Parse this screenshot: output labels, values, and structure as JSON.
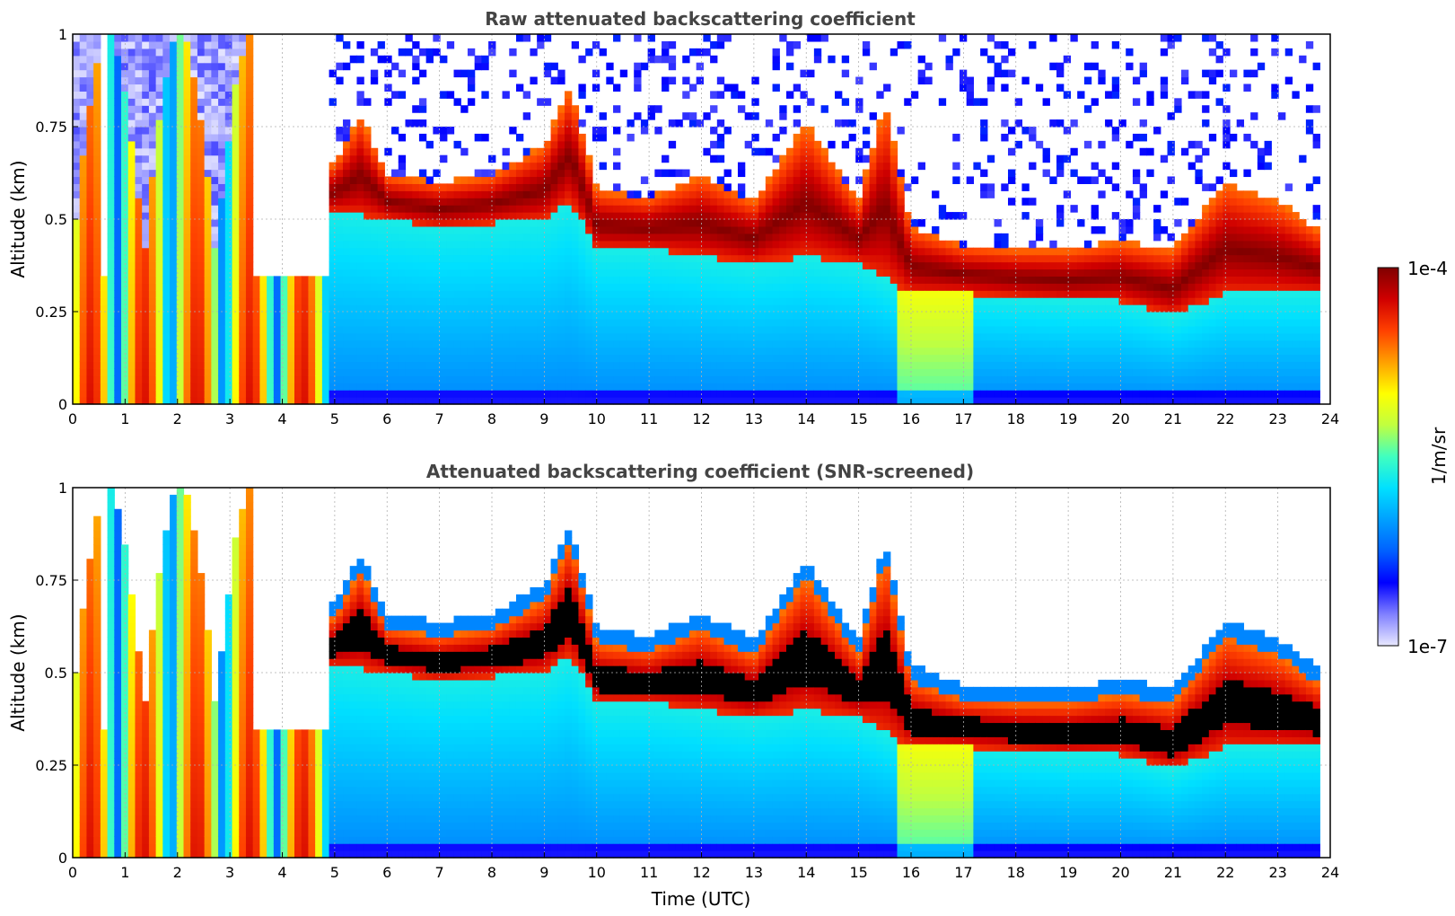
{
  "chart_data": [
    {
      "type": "heatmap",
      "title": "Raw attenuated backscattering coefficient",
      "xlabel": "",
      "ylabel": "Altitude (km)",
      "xlim": [
        0,
        24
      ],
      "ylim": [
        0,
        1
      ],
      "x_ticks": [
        0,
        1,
        2,
        3,
        4,
        5,
        6,
        7,
        8,
        9,
        10,
        11,
        12,
        13,
        14,
        15,
        16,
        17,
        18,
        19,
        20,
        21,
        22,
        23,
        24
      ],
      "y_ticks": [
        0,
        0.25,
        0.5,
        0.75,
        1
      ],
      "y_tick_labels": [
        "0",
        "0.25",
        "0.5",
        "0.75",
        "1"
      ],
      "grid": true,
      "screened": false,
      "data_end_hour": 23.8,
      "gap_hours": [
        [
          0.55,
          0.7
        ],
        [
          3.5,
          4.9
        ]
      ],
      "cloud_base_km": {
        "hours": [
          5,
          6,
          7,
          8,
          9,
          9.5,
          10,
          11,
          12,
          13,
          14,
          15,
          16,
          17,
          18,
          19,
          20,
          21,
          22,
          23,
          23.8
        ],
        "values": [
          0.52,
          0.5,
          0.48,
          0.49,
          0.5,
          0.55,
          0.42,
          0.42,
          0.4,
          0.38,
          0.4,
          0.38,
          0.3,
          0.3,
          0.29,
          0.28,
          0.28,
          0.24,
          0.3,
          0.3,
          0.3
        ]
      },
      "cloud_top_km": {
        "hours": [
          5,
          5.5,
          6,
          7,
          8,
          9,
          9.5,
          10,
          11,
          12,
          13,
          14,
          15,
          15.5,
          16,
          17,
          18,
          19,
          20,
          21,
          22,
          23,
          23.8
        ],
        "values": [
          0.65,
          0.78,
          0.62,
          0.6,
          0.62,
          0.7,
          0.86,
          0.58,
          0.56,
          0.62,
          0.55,
          0.76,
          0.55,
          0.82,
          0.48,
          0.43,
          0.42,
          0.42,
          0.44,
          0.42,
          0.6,
          0.55,
          0.47
        ]
      }
    },
    {
      "type": "heatmap",
      "title": "Attenuated backscattering coefficient (SNR-screened)",
      "xlabel": "Time (UTC)",
      "ylabel": "Altitude (km)",
      "xlim": [
        0,
        24
      ],
      "ylim": [
        0,
        1
      ],
      "x_ticks": [
        0,
        1,
        2,
        3,
        4,
        5,
        6,
        7,
        8,
        9,
        10,
        11,
        12,
        13,
        14,
        15,
        16,
        17,
        18,
        19,
        20,
        21,
        22,
        23,
        24
      ],
      "y_ticks": [
        0,
        0.25,
        0.5,
        0.75,
        1
      ],
      "y_tick_labels": [
        "0",
        "0.25",
        "0.5",
        "0.75",
        "1"
      ],
      "grid": true,
      "screened": true,
      "data_end_hour": 23.8
    }
  ],
  "colorbar": {
    "label": "1/m/sr",
    "max_label": "1e-4",
    "min_label": "1e-7",
    "scale": "log",
    "range": [
      1e-07,
      0.0001
    ],
    "colors": [
      "#e8e8ff",
      "#8080ff",
      "#0000ff",
      "#0060ff",
      "#00a0ff",
      "#00e0ff",
      "#40ffc0",
      "#c0ff40",
      "#ffff00",
      "#ffa000",
      "#ff4000",
      "#d00000",
      "#800000"
    ]
  }
}
